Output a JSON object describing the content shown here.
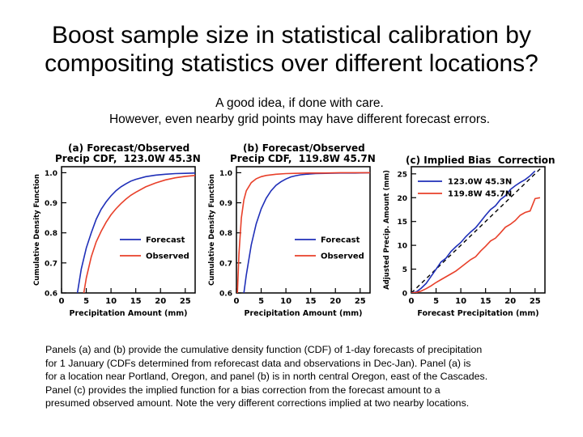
{
  "slide": {
    "title_line1": "Boost sample size in statistical calibration by",
    "title_line2": "compositing statistics over different locations?",
    "subtitle_line1": "A good idea, if done with care.",
    "subtitle_line2": "However, even nearby grid points may have different forecast errors.",
    "caption_lines": [
      "Panels (a) and (b) provide the cumulative density function (CDF) of 1-day forecasts of precipitation",
      "for 1 January (CDFs determined from reforecast data and observations in Dec-Jan).  Panel (a) is",
      "for a location near Portland, Oregon, and panel (b) is in north central Oregon, east of the Cascades.",
      "Panel (c) provides the implied function for a bias correction from the forecast amount to a",
      "presumed observed amount.  Note the very different corrections implied at two nearby locations."
    ]
  },
  "colors": {
    "forecast": "#1f2fb8",
    "observed": "#e8402a",
    "axis": "#000000"
  },
  "chart_data": [
    {
      "id": "a",
      "type": "line",
      "title_line1": "(a) Forecast/Observed",
      "title_line2": "Precip CDF,  123.0W 45.3N",
      "xlabel": "Precipitation Amount (mm)",
      "ylabel": "Cumulative Density Function",
      "xlim": [
        0,
        27
      ],
      "ylim": [
        0.6,
        1.02
      ],
      "xticks": [
        0,
        5,
        10,
        15,
        20,
        25
      ],
      "yticks": [
        0.6,
        0.7,
        0.8,
        0.9,
        1.0
      ],
      "ytick_labels": [
        "0.6",
        "0.7",
        "0.8",
        "0.9",
        "1.0"
      ],
      "legend_position": "center-right",
      "series": [
        {
          "name": "Forecast",
          "color": "#1f2fb8",
          "x": [
            3.2,
            4,
            5,
            6,
            7,
            8,
            9,
            10,
            11,
            12,
            13,
            14,
            15,
            17,
            19,
            21,
            23,
            25,
            27
          ],
          "y": [
            0.6,
            0.68,
            0.75,
            0.8,
            0.845,
            0.878,
            0.903,
            0.923,
            0.94,
            0.953,
            0.963,
            0.972,
            0.978,
            0.987,
            0.992,
            0.995,
            0.997,
            0.998,
            0.999
          ]
        },
        {
          "name": "Observed",
          "color": "#e8402a",
          "x": [
            4.5,
            5,
            6,
            7,
            8,
            9,
            10,
            11,
            12,
            13,
            14,
            15,
            17,
            19,
            21,
            23,
            25,
            27
          ],
          "y": [
            0.6,
            0.65,
            0.72,
            0.77,
            0.805,
            0.835,
            0.86,
            0.88,
            0.897,
            0.912,
            0.925,
            0.935,
            0.953,
            0.966,
            0.976,
            0.983,
            0.988,
            0.991
          ]
        }
      ]
    },
    {
      "id": "b",
      "type": "line",
      "title_line1": "(b) Forecast/Observed",
      "title_line2": "Precip CDF,  119.8W 45.7N",
      "xlabel": "Precipitation Amount (mm)",
      "ylabel": "Cumulative Density Function",
      "xlim": [
        0,
        27
      ],
      "ylim": [
        0.6,
        1.02
      ],
      "xticks": [
        0,
        5,
        10,
        15,
        20,
        25
      ],
      "yticks": [
        0.6,
        0.7,
        0.8,
        0.9,
        1.0
      ],
      "ytick_labels": [
        "0.6",
        "0.7",
        "0.8",
        "0.9",
        "1.0"
      ],
      "legend_position": "center-right",
      "series": [
        {
          "name": "Forecast",
          "color": "#1f2fb8",
          "x": [
            1.5,
            2,
            3,
            4,
            5,
            6,
            7,
            8,
            9,
            10,
            11,
            12,
            13,
            14,
            16,
            18,
            21,
            24,
            27
          ],
          "y": [
            0.6,
            0.66,
            0.76,
            0.83,
            0.88,
            0.915,
            0.94,
            0.958,
            0.97,
            0.979,
            0.986,
            0.99,
            0.993,
            0.995,
            0.997,
            0.998,
            0.999,
            0.999,
            1.0
          ]
        },
        {
          "name": "Observed",
          "color": "#e8402a",
          "x": [
            0.2,
            0.5,
            1,
            1.5,
            2,
            3,
            4,
            5,
            6,
            8,
            10,
            12,
            15,
            18,
            21,
            24,
            27
          ],
          "y": [
            0.6,
            0.73,
            0.85,
            0.91,
            0.94,
            0.967,
            0.98,
            0.987,
            0.991,
            0.995,
            0.997,
            0.998,
            0.999,
            0.999,
            1.0,
            1.0,
            1.0
          ]
        }
      ]
    },
    {
      "id": "c",
      "type": "line",
      "title_line1": "(c) Implied Bias  Correction",
      "title_line2": "",
      "xlabel": "Forecast Precipitation (mm)",
      "ylabel": "Adjusted Precip. Amount (mm)",
      "xlim": [
        0,
        27
      ],
      "ylim": [
        0,
        26.5
      ],
      "xticks": [
        0,
        5,
        10,
        15,
        20,
        25
      ],
      "yticks": [
        0,
        5,
        10,
        15,
        20,
        25
      ],
      "ytick_labels": [
        "0",
        "5",
        "10",
        "15",
        "20",
        "25"
      ],
      "legend_position": "top-left",
      "reference_line": {
        "x": [
          0,
          27
        ],
        "y": [
          0,
          27
        ],
        "style": "dashed"
      },
      "series": [
        {
          "name": "123.0W 45.3N",
          "color": "#1f2fb8",
          "x": [
            0,
            1,
            2,
            3,
            4,
            5,
            6,
            7,
            8,
            9,
            10,
            11,
            12,
            13,
            14,
            15,
            16,
            17,
            18,
            19,
            20,
            21,
            22,
            23,
            24,
            25
          ],
          "y": [
            0,
            0.2,
            1.0,
            2.0,
            3.5,
            5.0,
            6.5,
            7.3,
            8.7,
            9.7,
            10.6,
            11.8,
            12.8,
            13.7,
            15.0,
            16.3,
            17.5,
            18.3,
            19.6,
            20.4,
            21.7,
            22.5,
            23.2,
            23.8,
            24.6,
            25.6
          ]
        },
        {
          "name": "119.8W 45.7N",
          "color": "#e8402a",
          "x": [
            0,
            1,
            2,
            3,
            4,
            5,
            6,
            7,
            8,
            9,
            10,
            11,
            12,
            13,
            14,
            15,
            16,
            17,
            18,
            19,
            20,
            21,
            22,
            23,
            24,
            25,
            26
          ],
          "y": [
            0,
            0.1,
            0.4,
            0.9,
            1.5,
            2.2,
            2.8,
            3.4,
            4.0,
            4.6,
            5.4,
            6.2,
            7.0,
            7.6,
            8.8,
            9.8,
            10.9,
            11.5,
            12.6,
            13.8,
            14.4,
            15.2,
            16.3,
            16.9,
            17.2,
            19.8,
            20.0
          ]
        }
      ]
    }
  ]
}
